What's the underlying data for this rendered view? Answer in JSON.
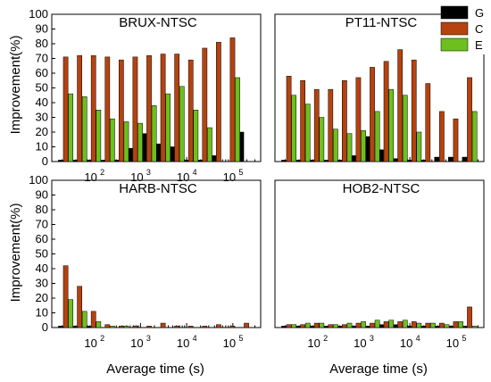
{
  "figure": {
    "ylabel": "Improvement(%)",
    "xlabel": "Average time (s)",
    "legend": [
      {
        "label": "G",
        "color": "#000000"
      },
      {
        "label": "C",
        "color": "#b5420f"
      },
      {
        "label": "E",
        "color": "#6dbf1e"
      }
    ]
  },
  "chart_data": [
    {
      "type": "bar",
      "title": "BRUX-NTSC",
      "ylim": [
        0,
        100
      ],
      "xscale": "log",
      "xlim": [
        12,
        400000
      ],
      "yticks": [
        0,
        10,
        20,
        30,
        40,
        50,
        60,
        70,
        80,
        90,
        100
      ],
      "xticks": [
        {
          "v": 100,
          "label": "10",
          "exp": "2"
        },
        {
          "v": 1000,
          "label": "10",
          "exp": "3"
        },
        {
          "v": 10000,
          "label": "10",
          "exp": "4"
        },
        {
          "v": 100000,
          "label": "10",
          "exp": "5"
        }
      ],
      "x": [
        24,
        48,
        96,
        192,
        384,
        768,
        1536,
        3072,
        6144,
        12288,
        24576,
        49152,
        98304,
        196608
      ],
      "series": [
        {
          "name": "G",
          "values": [
            1,
            1,
            1,
            1,
            1,
            9,
            19,
            12,
            10,
            1,
            1,
            4,
            0,
            20
          ]
        },
        {
          "name": "C",
          "values": [
            71,
            72,
            72,
            71,
            69,
            71,
            72,
            73,
            73,
            69,
            77,
            81,
            84,
            0
          ]
        },
        {
          "name": "E",
          "values": [
            46,
            44,
            35,
            29,
            27,
            26,
            38,
            46,
            51,
            35,
            23,
            0,
            57,
            0
          ]
        }
      ]
    },
    {
      "type": "bar",
      "title": "PT11-NTSC",
      "ylim": [
        0,
        100
      ],
      "xscale": "log",
      "xlim": [
        12,
        400000
      ],
      "yticks": [],
      "xticks": [],
      "x": [
        24,
        48,
        96,
        192,
        384,
        768,
        1536,
        3072,
        6144,
        12288,
        24576,
        49152,
        98304,
        196608
      ],
      "series": [
        {
          "name": "G",
          "values": [
            1,
            1,
            1,
            1,
            1,
            4,
            17,
            8,
            2,
            1,
            1,
            3,
            3,
            3
          ]
        },
        {
          "name": "C",
          "values": [
            58,
            55,
            49,
            49,
            55,
            57,
            64,
            68,
            76,
            69,
            53,
            34,
            29,
            57
          ]
        },
        {
          "name": "E",
          "values": [
            45,
            39,
            30,
            22,
            19,
            21,
            34,
            49,
            45,
            20,
            0,
            0,
            0,
            34
          ]
        }
      ]
    },
    {
      "type": "bar",
      "title": "HARB-NTSC",
      "ylim": [
        0,
        100
      ],
      "xscale": "log",
      "xlim": [
        12,
        400000
      ],
      "yticks": [
        0,
        10,
        20,
        30,
        40,
        50,
        60,
        70,
        80,
        90,
        100
      ],
      "xticks": [
        {
          "v": 100,
          "label": "10",
          "exp": "2"
        },
        {
          "v": 1000,
          "label": "10",
          "exp": "3"
        },
        {
          "v": 10000,
          "label": "10",
          "exp": "4"
        },
        {
          "v": 100000,
          "label": "10",
          "exp": "5"
        }
      ],
      "x": [
        24,
        48,
        96,
        192,
        384,
        768,
        1536,
        3072,
        6144,
        12288,
        24576,
        49152,
        98304,
        196608
      ],
      "series": [
        {
          "name": "G",
          "values": [
            1,
            1,
            1,
            0,
            0,
            0,
            0,
            0,
            0,
            0,
            0,
            0,
            0,
            0
          ]
        },
        {
          "name": "C",
          "values": [
            42,
            28,
            11,
            2,
            1,
            1,
            1,
            3,
            1,
            1,
            1,
            2,
            1,
            3
          ]
        },
        {
          "name": "E",
          "values": [
            19,
            11,
            4,
            1,
            1,
            0,
            0,
            0,
            0,
            0,
            0,
            0,
            0,
            0
          ]
        }
      ]
    },
    {
      "type": "bar",
      "title": "HOB2-NTSC",
      "ylim": [
        0,
        100
      ],
      "xscale": "log",
      "xlim": [
        12,
        400000
      ],
      "yticks": [],
      "xticks": [
        {
          "v": 100,
          "label": "10",
          "exp": "2"
        },
        {
          "v": 1000,
          "label": "10",
          "exp": "3"
        },
        {
          "v": 10000,
          "label": "10",
          "exp": "4"
        },
        {
          "v": 100000,
          "label": "10",
          "exp": "5"
        }
      ],
      "x": [
        24,
        48,
        96,
        192,
        384,
        768,
        1536,
        3072,
        6144,
        12288,
        24576,
        49152,
        98304,
        196608
      ],
      "series": [
        {
          "name": "G",
          "values": [
            1,
            1,
            1,
            1,
            1,
            1,
            1,
            2,
            2,
            1,
            1,
            1,
            1,
            1
          ]
        },
        {
          "name": "C",
          "values": [
            2,
            2,
            3,
            2,
            2,
            3,
            3,
            4,
            4,
            4,
            3,
            3,
            4,
            14
          ]
        },
        {
          "name": "E",
          "values": [
            2,
            3,
            3,
            2,
            3,
            4,
            5,
            5,
            5,
            3,
            3,
            2,
            4,
            1
          ]
        }
      ]
    }
  ]
}
